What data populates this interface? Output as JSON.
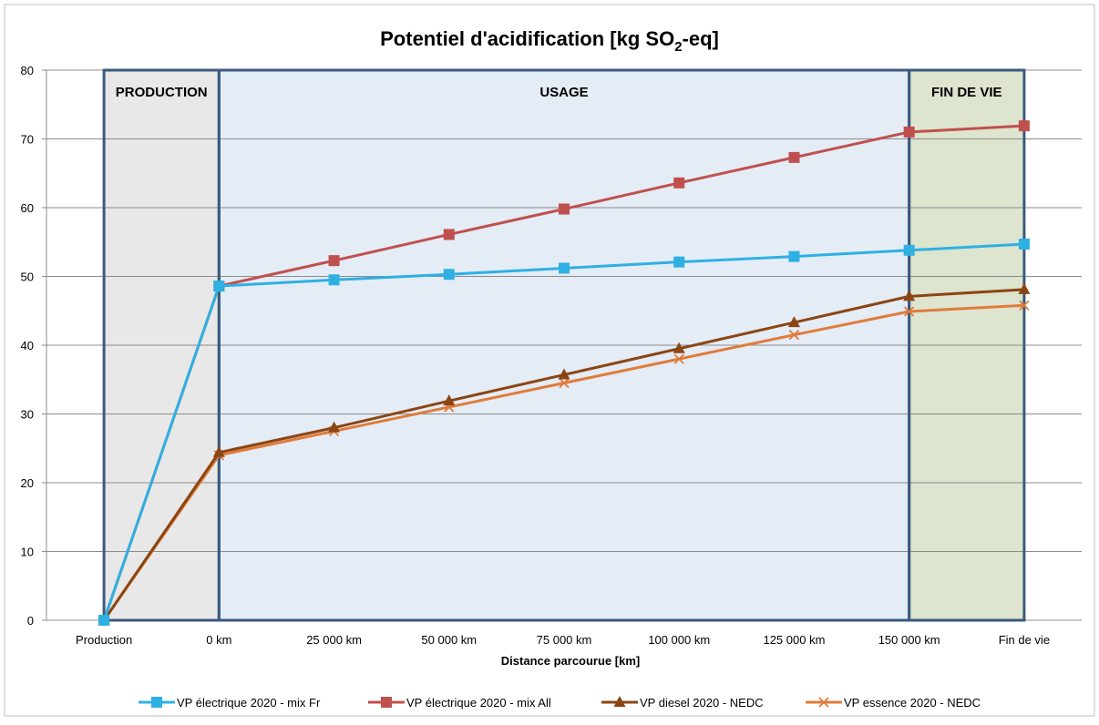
{
  "chart_data": {
    "type": "line",
    "title": "Potentiel d'acidification [kg SO",
    "title_sub": "2",
    "title_suffix": "-eq]",
    "xlabel": "Distance parcourue [km]",
    "ylabel": "",
    "ylim": [
      0,
      80
    ],
    "yticks": [
      0,
      10,
      20,
      30,
      40,
      50,
      60,
      70,
      80
    ],
    "grid": true,
    "legend_position": "bottom",
    "categories": [
      "Production",
      "0 km",
      "25 000 km",
      "50 000 km",
      "75 000 km",
      "100 000 km",
      "125 000 km",
      "150 000 km",
      "Fin de vie"
    ],
    "regions": [
      {
        "label": "PRODUCTION",
        "from": 0,
        "to": 1,
        "fill": "#e8e8e8"
      },
      {
        "label": "USAGE",
        "from": 1,
        "to": 7,
        "fill": "#e4ecf6"
      },
      {
        "label": "FIN DE VIE",
        "from": 7,
        "to": 8,
        "fill": "#dde5cf"
      }
    ],
    "region_border_color": "#3b5a7e",
    "series": [
      {
        "name": "VP électrique 2020 - mix Fr",
        "color": "#2eb0e3",
        "marker": "square",
        "values": [
          0,
          48.6,
          49.5,
          50.3,
          51.2,
          52.1,
          52.9,
          53.8,
          54.7
        ]
      },
      {
        "name": "VP électrique 2020 - mix All",
        "color": "#c0504d",
        "marker": "square",
        "values": [
          0,
          48.6,
          52.3,
          56.1,
          59.8,
          63.6,
          67.3,
          71.0,
          71.9
        ]
      },
      {
        "name": "VP diesel 2020 - NEDC",
        "color": "#8b4513",
        "marker": "triangle",
        "values": [
          0,
          24.4,
          28.0,
          31.9,
          35.7,
          39.5,
          43.3,
          47.1,
          48.1
        ]
      },
      {
        "name": "VP essence 2020 - NEDC",
        "color": "#e07b39",
        "marker": "cross",
        "values": [
          0,
          24.0,
          27.5,
          31.0,
          34.5,
          38.0,
          41.5,
          44.9,
          45.8
        ]
      }
    ]
  }
}
